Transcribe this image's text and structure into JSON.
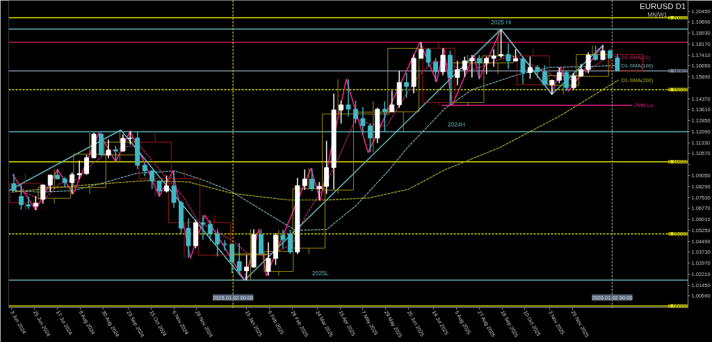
{
  "chart_data": {
    "type": "candlestick",
    "title": "EURUSD D1",
    "subtitle": "MN/W1",
    "series": [
      {
        "x": [
          "2024-06-05",
          "2024-06-12",
          "2024-06-19",
          "2024-06-26",
          "2024-07-03",
          "2024-07-10",
          "2024-07-17",
          "2024-07-24",
          "2024-07-31",
          "2024-08-07",
          "2024-08-14",
          "2024-08-21",
          "2024-08-28",
          "2024-09-04",
          "2024-09-11",
          "2024-09-18",
          "2024-09-25",
          "2024-10-02",
          "2024-10-09",
          "2024-10-16",
          "2024-10-23",
          "2024-10-30",
          "2024-11-06",
          "2024-11-13",
          "2024-11-20",
          "2024-11-27",
          "2024-12-04",
          "2024-12-11",
          "2024-12-18",
          "2024-12-25",
          "2025-01-01",
          "2025-01-08",
          "2025-01-15",
          "2025-01-22",
          "2025-01-29",
          "2025-02-05",
          "2025-02-12",
          "2025-02-19",
          "2025-02-26",
          "2025-03-05",
          "2025-03-12",
          "2025-03-19",
          "2025-03-26",
          "2025-04-02",
          "2025-04-09",
          "2025-04-16",
          "2025-04-23",
          "2025-04-30",
          "2025-05-07",
          "2025-05-14",
          "2025-05-21",
          "2025-05-28",
          "2025-06-04",
          "2025-06-11",
          "2025-06-18",
          "2025-06-25",
          "2025-07-02",
          "2025-07-09",
          "2025-07-16",
          "2025-07-23",
          "2025-07-30",
          "2025-08-06",
          "2025-08-13",
          "2025-08-20",
          "2025-08-27",
          "2025-09-03",
          "2025-09-10",
          "2025-09-17",
          "2025-09-24",
          "2025-10-01",
          "2025-10-08",
          "2025-10-15",
          "2025-10-22",
          "2025-10-29",
          "2025-11-05",
          "2025-11-12",
          "2025-11-19",
          "2025-11-26",
          "2025-12-03",
          "2025-12-10",
          "2025-12-17",
          "2025-12-24",
          "2025-12-31",
          "2026-01-07"
        ],
        "ohlc": [
          [
            1.0848,
            1.0916,
            1.0801,
            1.0801
          ],
          [
            1.076,
            1.0852,
            1.0668,
            1.0702
          ],
          [
            1.0702,
            1.0761,
            1.0672,
            1.0693
          ],
          [
            1.0693,
            1.0762,
            1.0666,
            1.0713
          ],
          [
            1.074,
            1.0844,
            1.071,
            1.0839
          ],
          [
            1.0839,
            1.091,
            1.0792,
            1.0908
          ],
          [
            1.0908,
            1.0948,
            1.0881,
            1.0882
          ],
          [
            1.0882,
            1.0895,
            1.0825,
            1.0856
          ],
          [
            1.0856,
            1.0926,
            1.0777,
            1.0911
          ],
          [
            1.0911,
            1.1009,
            1.0881,
            1.0918
          ],
          [
            1.0918,
            1.1047,
            1.091,
            1.1028
          ],
          [
            1.1028,
            1.1201,
            1.1026,
            1.1192
          ],
          [
            1.1192,
            1.1202,
            1.1044,
            1.1047
          ],
          [
            1.1047,
            1.1155,
            1.1026,
            1.1082
          ],
          [
            1.1082,
            1.111,
            1.1001,
            1.1075
          ],
          [
            1.1075,
            1.119,
            1.1069,
            1.1163
          ],
          [
            1.1163,
            1.1214,
            1.112,
            1.1165
          ],
          [
            1.1165,
            1.121,
            1.0951,
            1.0976
          ],
          [
            1.0976,
            1.099,
            1.09,
            1.0937
          ],
          [
            1.0937,
            1.0945,
            1.0811,
            1.0867
          ],
          [
            1.0867,
            1.087,
            1.0761,
            1.0797
          ],
          [
            1.0797,
            1.0905,
            1.0787,
            1.0833
          ],
          [
            1.0833,
            1.0937,
            1.0682,
            1.0718
          ],
          [
            1.0718,
            1.073,
            1.0497,
            1.054
          ],
          [
            1.054,
            1.0609,
            1.0332,
            1.0418
          ],
          [
            1.0418,
            1.0597,
            1.04,
            1.0577
          ],
          [
            1.0577,
            1.063,
            1.046,
            1.0566
          ],
          [
            1.0566,
            1.0594,
            1.0452,
            1.0502
          ],
          [
            1.0502,
            1.0535,
            1.0343,
            1.043
          ],
          [
            1.043,
            1.0457,
            1.0385,
            1.0428
          ],
          [
            1.0428,
            1.0436,
            1.0226,
            1.0308
          ],
          [
            1.0308,
            1.0437,
            1.0215,
            1.0244
          ],
          [
            1.0244,
            1.0353,
            1.0178,
            1.027
          ],
          [
            1.027,
            1.0533,
            1.0265,
            1.0495
          ],
          [
            1.0495,
            1.0533,
            1.036,
            1.0362
          ],
          [
            1.024,
            1.0442,
            1.021,
            1.033
          ],
          [
            1.033,
            1.0505,
            1.0285,
            1.049
          ],
          [
            1.049,
            1.053,
            1.04,
            1.046
          ],
          [
            1.05,
            1.0528,
            1.036,
            1.0375
          ],
          [
            1.0375,
            1.0888,
            1.036,
            1.0835
          ],
          [
            1.0835,
            1.0947,
            1.0805,
            1.088
          ],
          [
            1.088,
            1.0955,
            1.0797,
            1.0815
          ],
          [
            1.0815,
            1.086,
            1.0733,
            1.083
          ],
          [
            1.083,
            1.1146,
            1.0777,
            1.096
          ],
          [
            1.096,
            1.1474,
            1.081,
            1.136
          ],
          [
            1.136,
            1.1425,
            1.1265,
            1.1395
          ],
          [
            1.1395,
            1.1573,
            1.1315,
            1.1365
          ],
          [
            1.1365,
            1.1425,
            1.1265,
            1.13
          ],
          [
            1.13,
            1.138,
            1.1193,
            1.125
          ],
          [
            1.125,
            1.1265,
            1.1065,
            1.1165
          ],
          [
            1.1165,
            1.1375,
            1.113,
            1.1365
          ],
          [
            1.1365,
            1.142,
            1.121,
            1.1347
          ],
          [
            1.1347,
            1.1495,
            1.1345,
            1.1395
          ],
          [
            1.1395,
            1.1631,
            1.1375,
            1.155
          ],
          [
            1.155,
            1.1615,
            1.1445,
            1.1523
          ],
          [
            1.1523,
            1.1745,
            1.1475,
            1.1718
          ],
          [
            1.1718,
            1.183,
            1.1715,
            1.178
          ],
          [
            1.178,
            1.179,
            1.166,
            1.169
          ],
          [
            1.169,
            1.172,
            1.1556,
            1.1625
          ],
          [
            1.1625,
            1.1788,
            1.16,
            1.174
          ],
          [
            1.174,
            1.177,
            1.1392,
            1.1585
          ],
          [
            1.1585,
            1.17,
            1.153,
            1.164
          ],
          [
            1.164,
            1.173,
            1.159,
            1.17
          ],
          [
            1.17,
            1.1742,
            1.1585,
            1.1718
          ],
          [
            1.1718,
            1.174,
            1.1575,
            1.1685
          ],
          [
            1.1685,
            1.173,
            1.1608,
            1.1718
          ],
          [
            1.1718,
            1.178,
            1.166,
            1.1735
          ],
          [
            1.1735,
            1.1919,
            1.172,
            1.1745
          ],
          [
            1.1745,
            1.182,
            1.1645,
            1.17
          ],
          [
            1.17,
            1.178,
            1.1695,
            1.1715
          ],
          [
            1.1715,
            1.173,
            1.154,
            1.162
          ],
          [
            1.162,
            1.173,
            1.1577,
            1.1655
          ],
          [
            1.1655,
            1.167,
            1.158,
            1.1625
          ],
          [
            1.1625,
            1.167,
            1.153,
            1.1535
          ],
          [
            1.1535,
            1.157,
            1.1468,
            1.1565
          ],
          [
            1.1565,
            1.1655,
            1.1545,
            1.162
          ],
          [
            1.162,
            1.163,
            1.1491,
            1.1515
          ],
          [
            1.1515,
            1.1615,
            1.15,
            1.1595
          ],
          [
            1.1595,
            1.168,
            1.159,
            1.164
          ],
          [
            1.164,
            1.176,
            1.1615,
            1.174
          ],
          [
            1.174,
            1.1805,
            1.17,
            1.171
          ],
          [
            1.171,
            1.1808,
            1.1705,
            1.177
          ],
          [
            1.177,
            1.178,
            1.1715,
            1.172
          ],
          [
            1.172,
            1.1745,
            1.163,
            1.163
          ]
        ],
        "colors": [
          "#41b6c4",
          "#41b6c4",
          "#41b6c4",
          "#ffffff",
          "#ffffff",
          "#ffffff",
          "#41b6c4",
          "#41b6c4",
          "#ffffff",
          "#ffffff",
          "#ffffff",
          "#ffffff",
          "#41b6c4",
          "#ffffff",
          "#41b6c4",
          "#ffffff",
          "#ffffff",
          "#41b6c4",
          "#41b6c4",
          "#41b6c4",
          "#41b6c4",
          "#ffffff",
          "#41b6c4",
          "#41b6c4",
          "#41b6c4",
          "#ffffff",
          "#41b6c4",
          "#41b6c4",
          "#41b6c4",
          "#41b6c4",
          "#41b6c4",
          "#41b6c4",
          "#ffffff",
          "#ffffff",
          "#41b6c4",
          "#ffffff",
          "#ffffff",
          "#41b6c4",
          "#41b6c4",
          "#ffffff",
          "#ffffff",
          "#41b6c4",
          "#ffffff",
          "#ffffff",
          "#ffffff",
          "#ffffff",
          "#41b6c4",
          "#41b6c4",
          "#41b6c4",
          "#41b6c4",
          "#ffffff",
          "#41b6c4",
          "#ffffff",
          "#ffffff",
          "#41b6c4",
          "#ffffff",
          "#ffffff",
          "#41b6c4",
          "#41b6c4",
          "#ffffff",
          "#41b6c4",
          "#ffffff",
          "#ffffff",
          "#ffffff",
          "#41b6c4",
          "#ffffff",
          "#ffffff",
          "#ffffff",
          "#41b6c4",
          "#ffffff",
          "#41b6c4",
          "#ffffff",
          "#41b6c4",
          "#41b6c4",
          "#ffffff",
          "#ffffff",
          "#41b6c4",
          "#ffffff",
          "#ffffff",
          "#ffffff",
          "#41b6c4",
          "#ffffff",
          "#41b6c4",
          "#41b6c4"
        ]
      },
      {
        "type": "candlestick",
        "x": [
          "2024-06-16",
          "2024-07-14",
          "2024-08-17",
          "2024-09-15",
          "2024-10-19",
          "2024-11-16",
          "2024-12-15",
          "2025-01-19",
          "2025-02-15",
          "2025-03-16",
          "2025-04-13",
          "2025-05-17",
          "2025-06-15",
          "2025-07-19",
          "2025-08-16",
          "2025-09-14",
          "2025-10-18",
          "2025-11-16",
          "2025-12-14",
          "2026-01-16"
        ],
        "ohlc": [
          [
            1.0849,
            1.0916,
            1.0666,
            1.0716
          ],
          [
            1.0747,
            1.0948,
            1.071,
            1.0825
          ],
          [
            1.0822,
            1.1202,
            1.0777,
            1.1053
          ],
          [
            1.1048,
            1.1214,
            1.1001,
            1.1137
          ],
          [
            1.1137,
            1.121,
            1.0761,
            1.0884
          ],
          [
            1.0884,
            1.0937,
            1.0332,
            1.0578
          ],
          [
            1.0578,
            1.063,
            1.0343,
            1.0353
          ],
          [
            1.0354,
            1.0533,
            1.0178,
            1.0362
          ],
          [
            1.024,
            1.0528,
            1.021,
            1.0379
          ],
          [
            1.0401,
            1.0955,
            1.036,
            1.0813
          ],
          [
            1.0804,
            1.1573,
            1.0777,
            1.1332
          ],
          [
            1.1332,
            1.142,
            1.1065,
            1.1345
          ],
          [
            1.1347,
            1.179,
            1.121,
            1.1787
          ],
          [
            1.1788,
            1.183,
            1.1392,
            1.1411
          ],
          [
            1.1411,
            1.1742,
            1.139,
            1.1686
          ],
          [
            1.1686,
            1.1919,
            1.1608,
            1.1735
          ],
          [
            1.1735,
            1.178,
            1.1535,
            1.1535
          ],
          [
            1.1531,
            1.1655,
            1.1468,
            1.1598
          ],
          [
            1.1593,
            1.1808,
            1.159,
            1.1744
          ],
          [
            1.1744,
            1.175,
            1.163,
            1.163
          ]
        ],
        "colors": [
          "#a11a1a",
          "#a48d12",
          "#a48d12",
          "#a48d12",
          "#a11a1a",
          "#a11a1a",
          "#a11a1a",
          "#a48d12",
          "#a48d12",
          "#a48d12",
          "#a48d12",
          "#a48d12",
          "#a48d12",
          "#a11a1a",
          "#a48d12",
          "#a48d12",
          "#a11a1a",
          "#a48d12",
          "#a48d12",
          "#a11a1a"
        ]
      },
      {
        "type": "line",
        "name": "D1-SMA(21)",
        "color": "#c8286a",
        "line_style": "dotted",
        "x": [
          "2024-06-03",
          "2024-06-18",
          "2024-07-03",
          "2024-07-19",
          "2024-08-06",
          "2024-08-20",
          "2024-09-04",
          "2024-09-19",
          "2024-10-03",
          "2024-10-17",
          "2024-11-01",
          "2024-11-15",
          "2024-11-29",
          "2024-12-13",
          "2024-12-31",
          "2025-01-15",
          "2025-01-31",
          "2025-02-14",
          "2025-02-28",
          "2025-03-14",
          "2025-03-31",
          "2025-04-15",
          "2025-04-30",
          "2025-05-15",
          "2025-05-30",
          "2025-06-16",
          "2025-06-30",
          "2025-07-15",
          "2025-07-31",
          "2025-08-15",
          "2025-08-29",
          "2025-09-15",
          "2025-09-30",
          "2025-10-15",
          "2025-10-31",
          "2025-11-14",
          "2025-11-28",
          "2025-12-15",
          "2025-12-31",
          "2026-01-08"
        ],
        "values": [
          1.081,
          1.078,
          1.073,
          1.085,
          1.088,
          1.099,
          1.107,
          1.11,
          1.112,
          1.1,
          1.087,
          1.076,
          1.059,
          1.053,
          1.046,
          1.037,
          1.035,
          1.038,
          1.043,
          1.064,
          1.083,
          1.105,
          1.13,
          1.126,
          1.125,
          1.145,
          1.16,
          1.17,
          1.167,
          1.163,
          1.166,
          1.171,
          1.173,
          1.168,
          1.162,
          1.157,
          1.157,
          1.166,
          1.174,
          1.1725
        ]
      },
      {
        "type": "line",
        "name": "D1-SMA(100)",
        "color": "#78b4bc",
        "line_style": "dotted",
        "x": [
          "2024-06-03",
          "2024-07-01",
          "2024-08-01",
          "2024-09-02",
          "2024-10-01",
          "2024-11-07",
          "2024-12-02",
          "2024-12-30",
          "2025-01-31",
          "2025-03-03",
          "2025-04-02",
          "2025-05-01",
          "2025-06-02",
          "2025-06-19",
          "2025-07-25",
          "2025-08-20",
          "2025-10-01",
          "2025-11-03",
          "2025-12-01",
          "2026-01-08"
        ],
        "values": [
          1.08,
          1.079,
          1.08,
          1.086,
          1.092,
          1.0937,
          1.088,
          1.08,
          1.066,
          1.0525,
          1.053,
          1.07,
          1.095,
          1.11,
          1.137,
          1.15,
          1.16,
          1.1655,
          1.166,
          1.1668
        ]
      },
      {
        "type": "line",
        "name": "D1-SMA(200)",
        "color": "#b8b41c",
        "line_style": "dotted",
        "x": [
          "2024-06-03",
          "2024-08-05",
          "2024-10-10",
          "2024-11-20",
          "2025-01-02",
          "2025-02-25",
          "2025-04-02",
          "2025-05-13",
          "2025-06-20",
          "2025-07-25",
          "2025-09-16",
          "2025-10-15",
          "2025-11-13",
          "2026-01-08"
        ],
        "values": [
          1.079,
          1.0835,
          1.087,
          1.086,
          1.078,
          1.0735,
          1.0735,
          1.075,
          1.081,
          1.0945,
          1.11,
          1.121,
          1.132,
          1.1567
        ]
      },
      {
        "type": "line",
        "color": "#f0288a",
        "line_style": "solid",
        "x": [
          "2024-06-04",
          "2024-06-26",
          "2024-07-17",
          "2024-08-01",
          "2024-08-26",
          "2024-09-11",
          "2024-09-25",
          "2024-10-23",
          "2024-11-05",
          "2024-11-22",
          "2024-12-06",
          "2025-01-13",
          "2025-01-27",
          "2025-02-03",
          "2025-03-18",
          "2025-03-27",
          "2025-04-21",
          "2025-05-12",
          "2025-07-01",
          "2025-07-17",
          "2025-07-24",
          "2025-08-01",
          "2025-08-22",
          "2025-08-27",
          "2025-09-17",
          "2025-11-05",
          "2025-11-13",
          "2025-11-21",
          "2025-12-24"
        ],
        "values": [
          1.091,
          1.0666,
          1.0948,
          1.0777,
          1.1202,
          1.1001,
          1.1214,
          1.0761,
          1.0937,
          1.0332,
          1.063,
          1.0178,
          1.0533,
          1.021,
          1.0955,
          1.0733,
          1.1573,
          1.1065,
          1.183,
          1.1556,
          1.1788,
          1.1392,
          1.1742,
          1.1575,
          1.1919,
          1.1468,
          1.1655,
          1.1491,
          1.1808
        ]
      },
      {
        "type": "line",
        "color": "#62b7bd",
        "line_style": "solid",
        "x": [
          "2024-05-31",
          "2024-09-16",
          "2025-01-13",
          "2025-09-17",
          "2025-11-05",
          "2025-12-24"
        ],
        "values": [
          1.08,
          1.1221,
          1.0178,
          1.1919,
          1.1468,
          1.1808
        ]
      },
      {
        "type": "line",
        "name": "7MN Lo",
        "color": "#f0208a",
        "line_style": "solid",
        "x": [
          "2025-07-22",
          "2026-01-21"
        ],
        "values": [
          1.1392,
          1.1392
        ]
      }
    ],
    "xlim": [
      "2024-05-31",
      "2026-03-16"
    ],
    "xticks": [
      {
        "value": "2024-06-03",
        "label": "3 Jun 2024"
      },
      {
        "value": "2024-06-25",
        "label": "25 Jun 2024"
      },
      {
        "value": "2024-07-17",
        "label": "17 Jul 2024"
      },
      {
        "value": "2024-08-08",
        "label": "8 Aug 2024"
      },
      {
        "value": "2024-08-30",
        "label": "30 Aug 2024"
      },
      {
        "value": "2024-09-23",
        "label": "23 Sep 2024"
      },
      {
        "value": "2024-10-15",
        "label": "15 Oct 2024"
      },
      {
        "value": "2024-11-06",
        "label": "6 Nov 2024"
      },
      {
        "value": "2024-11-28",
        "label": "28 Nov 2024"
      },
      {
        "value": "2025-01-15",
        "label": "15 Jan 2025"
      },
      {
        "value": "2025-02-06",
        "label": "6 Feb 2025"
      },
      {
        "value": "2025-02-28",
        "label": "28 Feb 2025"
      },
      {
        "value": "2025-03-24",
        "label": "24 Mar 2025"
      },
      {
        "value": "2025-04-15",
        "label": "15 Apr 2025"
      },
      {
        "value": "2025-05-07",
        "label": "7 May 2025"
      },
      {
        "value": "2025-05-29",
        "label": "29 May 2025"
      },
      {
        "value": "2025-06-20",
        "label": "20 Jun 2025"
      },
      {
        "value": "2025-07-14",
        "label": "14 Jul 2025"
      },
      {
        "value": "2025-08-05",
        "label": "5 Aug 2025"
      },
      {
        "value": "2025-08-27",
        "label": "27 Aug 2025"
      },
      {
        "value": "2025-09-18",
        "label": "18 Sep 2025"
      },
      {
        "value": "2025-10-10",
        "label": "10 Oct 2025"
      },
      {
        "value": "2025-11-03",
        "label": "3 Nov 2025"
      },
      {
        "value": "2025-11-25",
        "label": "25 Nov 2025"
      }
    ],
    "ylim": [
      0.9989,
      1.212
    ],
    "yticks": [
      {
        "value": 1.2045,
        "label": "1.20450"
      },
      {
        "value": 1.1969,
        "label": "1.19690"
      },
      {
        "value": 1.1893,
        "label": "1.18930"
      },
      {
        "value": 1.1817,
        "label": "1.18170"
      },
      {
        "value": 1.1741,
        "label": "1.17410"
      },
      {
        "value": 1.1665,
        "label": "1.16650"
      },
      {
        "value": 1.1589,
        "label": "1.15890"
      },
      {
        "value": 1.1513,
        "label": null
      },
      {
        "value": 1.1437,
        "label": "1.14370"
      },
      {
        "value": 1.1361,
        "label": "1.13610"
      },
      {
        "value": 1.1285,
        "label": "1.12850"
      },
      {
        "value": 1.1209,
        "label": "1.12090"
      },
      {
        "value": 1.1133,
        "label": "1.11330"
      },
      {
        "value": 1.1057,
        "label": "1.10570"
      },
      {
        "value": 1.0981,
        "label": null
      },
      {
        "value": 1.0905,
        "label": "1.09050"
      },
      {
        "value": 1.0829,
        "label": "1.08290"
      },
      {
        "value": 1.0753,
        "label": "1.07530"
      },
      {
        "value": 1.0677,
        "label": "1.06770"
      },
      {
        "value": 1.0601,
        "label": "1.06010"
      },
      {
        "value": 1.0525,
        "label": "1.05250"
      },
      {
        "value": 1.0449,
        "label": "1.04490"
      },
      {
        "value": 1.0373,
        "label": "1.03730"
      },
      {
        "value": 1.0297,
        "label": "1.02970"
      },
      {
        "value": 1.0221,
        "label": "1.02210"
      },
      {
        "value": 1.0145,
        "label": "1.01450"
      },
      {
        "value": 1.0069,
        "label": "1.00690"
      }
    ],
    "ref_lines": [
      {
        "axis": "y",
        "value": 1.2,
        "label": "1.20000",
        "color": "#e6e600",
        "line_style": "solid"
      },
      {
        "axis": "y",
        "value": 1.1921,
        "color": "#5fb3b8",
        "line_style": "solid"
      },
      {
        "axis": "y",
        "value": 1.183,
        "color": "#c0185a",
        "line_style": "solid"
      },
      {
        "axis": "y",
        "value": 1.16302,
        "label": "1.16302",
        "color": "#7d8b9b",
        "line_style": "solid"
      },
      {
        "axis": "y",
        "value": 1.15,
        "label": "1.15000",
        "color": "#e6e600",
        "line_style": "dotted"
      },
      {
        "axis": "y",
        "value": 1.1209,
        "color": "#5fb3b8",
        "line_style": "solid"
      },
      {
        "axis": "y",
        "value": 1.1,
        "label": "1.10000",
        "color": "#e6e600",
        "line_style": "solid"
      },
      {
        "axis": "y",
        "value": 1.05,
        "label": "1.05000",
        "color": "#e6e600",
        "line_style": "dotted"
      },
      {
        "axis": "y",
        "value": 1.018,
        "color": "#5fb3b8",
        "line_style": "solid"
      },
      {
        "axis": "y",
        "value": 1.0,
        "label": "1.00000",
        "color": "#e6e600",
        "line_style": "solid"
      },
      {
        "axis": "x",
        "value": "2025-01-02",
        "label": "2025.01.02 00:00",
        "color": "#b8b000",
        "line_style": "dotted"
      },
      {
        "axis": "x",
        "value": "2026-01-02",
        "label": "2026.01.02 00:00",
        "color": "#8a8a8a",
        "line_style": "dotted"
      }
    ],
    "annotations": [
      {
        "text": "2025 Hi",
        "x": "2025-09-17",
        "y": 1.1921
      },
      {
        "text": "2024H",
        "x": "2025-08-05",
        "y": 1.1209
      },
      {
        "text": "2025L",
        "x": "2025-03-27",
        "y": 1.018
      }
    ],
    "grid": false
  }
}
